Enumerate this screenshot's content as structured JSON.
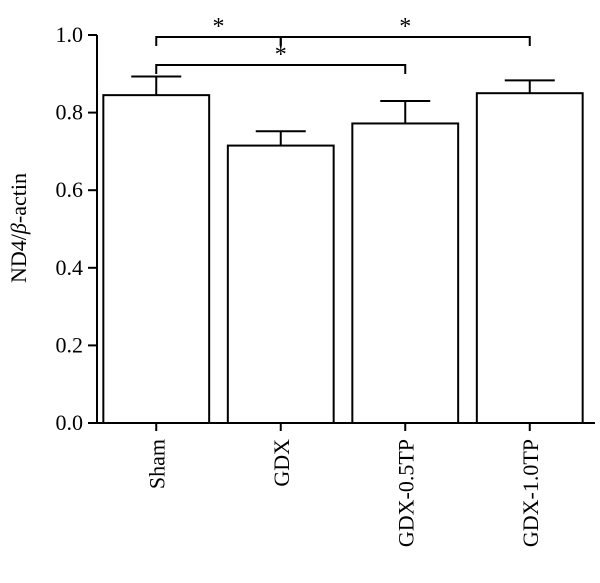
{
  "chart_data": {
    "type": "bar",
    "categories": [
      "Sham",
      "GDX",
      "GDX-0.5TP",
      "GDX-1.0TP"
    ],
    "values": [
      0.845,
      0.715,
      0.772,
      0.85
    ],
    "error_upper": [
      0.893,
      0.752,
      0.83,
      0.883
    ],
    "ylabel": "ND4/β-actin",
    "ylabel_parts": [
      "ND4/",
      "β",
      "-actin"
    ],
    "ylim": [
      0,
      1.0
    ],
    "yticks": [
      0.0,
      0.2,
      0.4,
      0.6,
      0.8,
      1.0
    ],
    "ytick_labels": [
      "0.0",
      "0.2",
      "0.4",
      "0.6",
      "0.8",
      "1.0"
    ],
    "bar_fill": "#ffffff",
    "stroke_color": "#000000",
    "grid": false,
    "significance": [
      {
        "from": 0,
        "to": 1,
        "label": "*"
      },
      {
        "from": 1,
        "to": 3,
        "label": "*"
      },
      {
        "from": 0,
        "to": 2,
        "label": "*"
      }
    ]
  }
}
